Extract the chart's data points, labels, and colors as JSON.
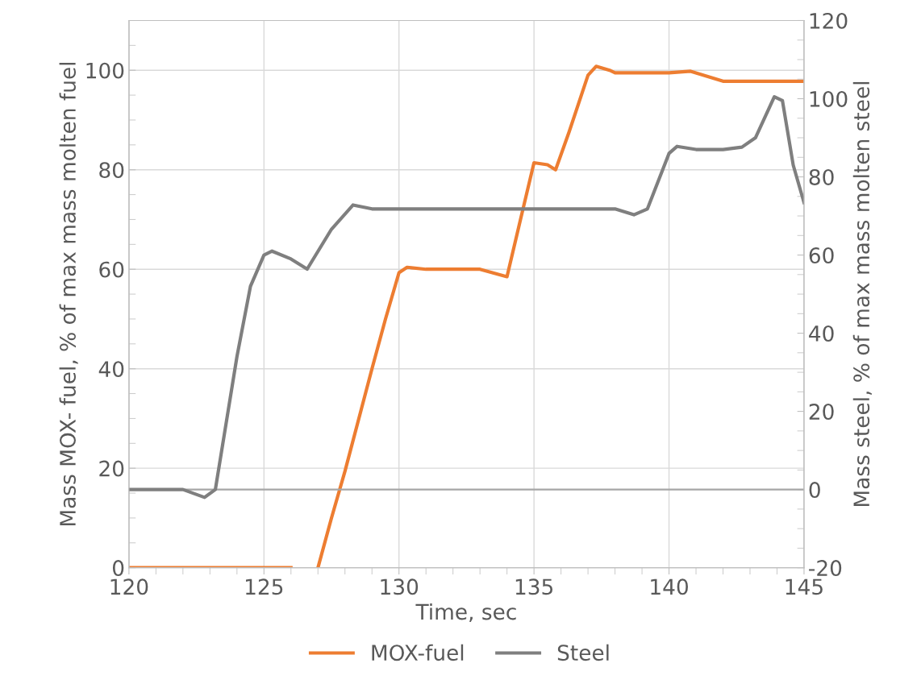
{
  "chart_data": {
    "type": "line",
    "xlabel": "Time, sec",
    "ylabel": "Mass MOX- fuel, % of max mass molten fuel",
    "y2label": "Mass steel, % of max mass molten steel",
    "xlim": [
      120,
      145
    ],
    "xticks": [
      120,
      125,
      130,
      135,
      140,
      145
    ],
    "ylim": [
      0,
      110
    ],
    "yticks": [
      0,
      20,
      40,
      60,
      80,
      100
    ],
    "y2lim": [
      -20,
      120
    ],
    "y2ticks": [
      -20,
      0,
      20,
      40,
      60,
      80,
      100,
      120
    ],
    "grid": true,
    "legend": "bottom",
    "marker": "none",
    "line_style": "solid",
    "ref_lines": [
      {
        "axis": "y2",
        "value": 0,
        "color": "#a6a6a6"
      }
    ],
    "series": [
      {
        "name": "MOX-fuel",
        "color": "#ed7d31",
        "x": [
          120,
          126,
          126.5,
          127,
          127.5,
          128,
          129,
          129.5,
          130,
          130.3,
          131,
          133,
          134,
          134.5,
          135,
          135.5,
          135.8,
          136.3,
          137,
          137.3,
          137.8,
          138,
          140,
          140.8,
          142,
          145
        ],
        "values": [
          0,
          0,
          null,
          0,
          10,
          19.4,
          40,
          50,
          59.3,
          60.4,
          60,
          60,
          58.5,
          70,
          81.4,
          81,
          80,
          87.6,
          99,
          100.8,
          100,
          99.5,
          99.5,
          99.8,
          97.8,
          97.8
        ]
      },
      {
        "name": "Steel",
        "color": "#7f7f7f",
        "axis": "y2",
        "x": [
          120,
          122,
          122.8,
          123.2,
          124,
          124.5,
          125,
          125.3,
          126,
          126.6,
          127.5,
          128.3,
          129,
          138,
          138.7,
          139.2,
          140,
          140.3,
          141,
          142,
          142.7,
          143.2,
          143.9,
          144.2,
          144.6,
          145
        ],
        "values": [
          0,
          0,
          -2,
          0,
          34,
          52,
          60,
          61,
          59,
          56.4,
          66.6,
          72.8,
          71.8,
          71.8,
          70.3,
          71.8,
          86,
          87.8,
          87,
          87,
          87.6,
          90,
          100.5,
          99.5,
          83,
          73.4
        ]
      }
    ]
  }
}
